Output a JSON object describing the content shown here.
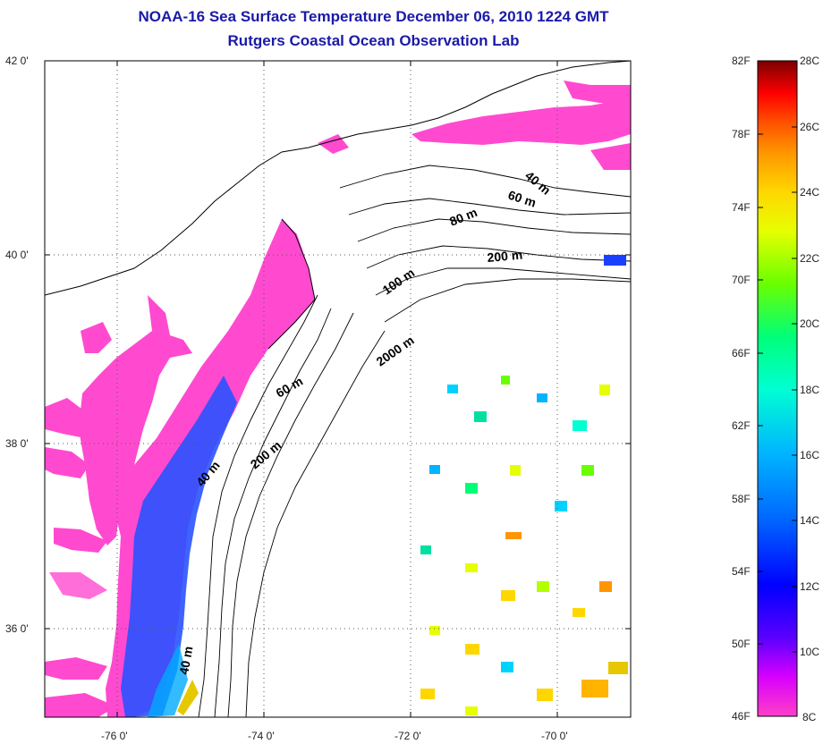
{
  "title": "NOAA-16 Sea Surface Temperature December 06, 2010 1224 GMT",
  "subtitle": "Rutgers Coastal Ocean Observation Lab",
  "map": {
    "lat_labels": [
      "42 0'",
      "40 0'",
      "38 0'",
      "36 0'"
    ],
    "lon_labels": [
      "-76 0'",
      "-74 0'",
      "-72 0'",
      "-70 0'"
    ],
    "isobath_labels": [
      "40 m",
      "60 m",
      "80 m",
      "200 m",
      "100 m",
      "2000 m",
      "60 m",
      "40 m",
      "200 m",
      "40 m"
    ]
  },
  "colorbar": {
    "fahrenheit": [
      "82F",
      "78F",
      "74F",
      "70F",
      "66F",
      "62F",
      "58F",
      "54F",
      "50F",
      "46F"
    ],
    "celsius": [
      "28C",
      "26C",
      "24C",
      "22C",
      "20C",
      "18C",
      "16C",
      "14C",
      "12C",
      "10C",
      "8C"
    ],
    "colors": [
      "#ff3fc8",
      "#d700ff",
      "#5a00ff",
      "#0000ff",
      "#0066ff",
      "#00b4ff",
      "#00ffd2",
      "#00ff78",
      "#6aff00",
      "#e6ff00",
      "#ffd700",
      "#ff9600",
      "#ff4a00",
      "#ff0000",
      "#b00000",
      "#7a0000"
    ]
  }
}
